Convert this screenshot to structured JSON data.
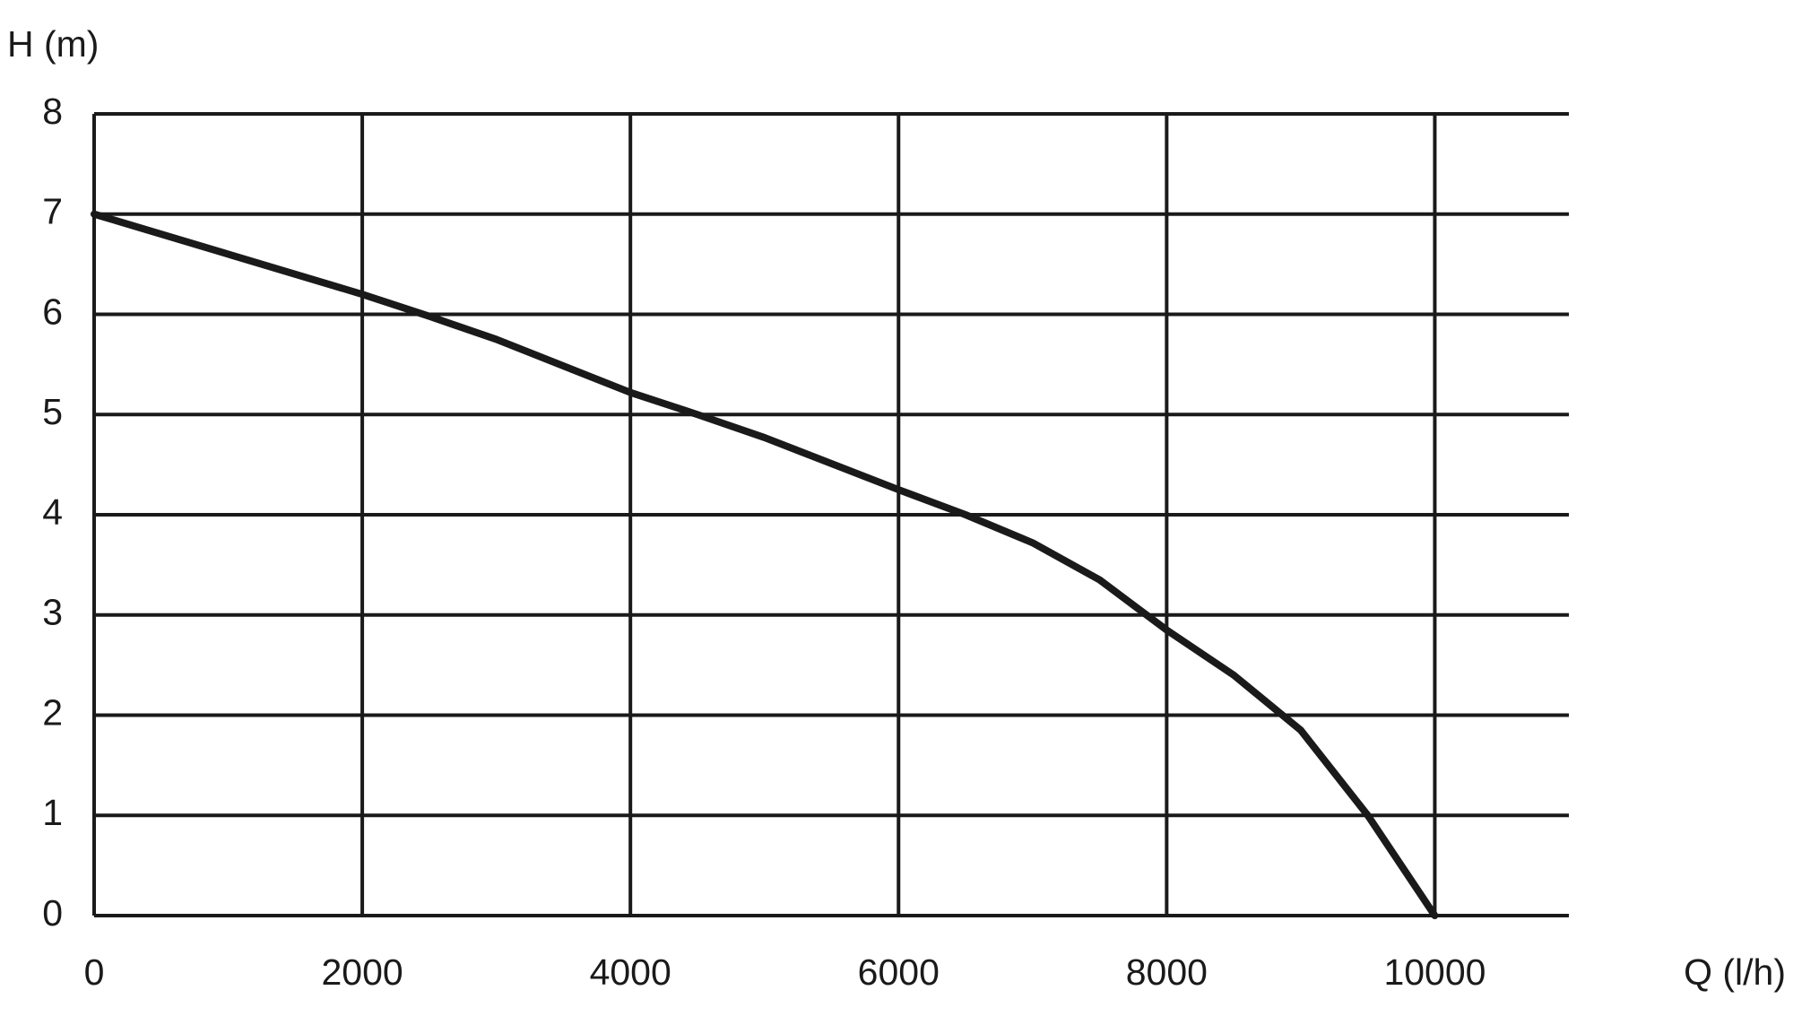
{
  "chart_data": {
    "type": "line",
    "y_label": "H (m)",
    "x_label": "Q (l/h)",
    "x": [
      0,
      1000,
      2000,
      2500,
      3000,
      4000,
      4500,
      5000,
      6000,
      6500,
      7000,
      7500,
      8000,
      8500,
      9000,
      9500,
      10000
    ],
    "series": [
      {
        "name": "H",
        "color": "#1a1a1a",
        "values": [
          7,
          6.6,
          6.2,
          5.98,
          5.75,
          5.22,
          5.0,
          4.77,
          4.25,
          4.0,
          3.72,
          3.35,
          2.85,
          2.4,
          1.85,
          1.0,
          0
        ]
      }
    ],
    "xlim": [
      0,
      11000
    ],
    "xticks": [
      0,
      2000,
      4000,
      6000,
      8000,
      10000
    ],
    "ylim": [
      0,
      8
    ],
    "yticks": [
      0,
      1,
      2,
      3,
      4,
      5,
      6,
      7,
      8
    ],
    "grid": true
  }
}
